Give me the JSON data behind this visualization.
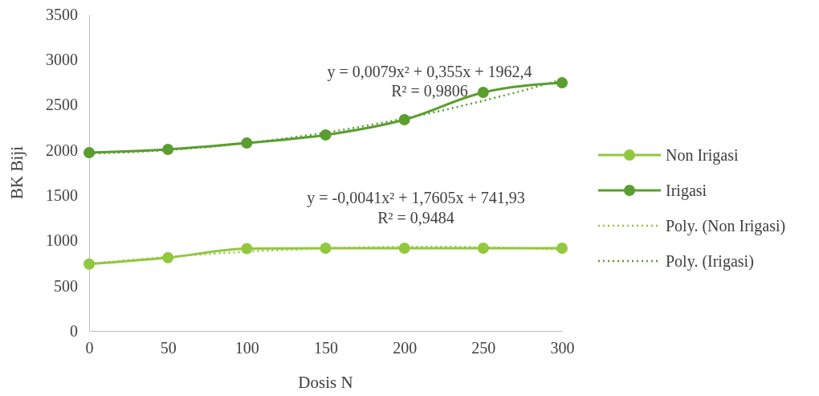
{
  "chart_data": {
    "type": "line",
    "xlabel": "Dosis N",
    "ylabel": "BK Biji",
    "xlim": [
      0,
      300
    ],
    "xticks": [
      0,
      50,
      100,
      150,
      200,
      250,
      300
    ],
    "ylim": [
      0,
      3500
    ],
    "yticks": [
      0,
      500,
      1000,
      1500,
      2000,
      2500,
      3000,
      3500
    ],
    "grid": false,
    "legend": "right",
    "marker": "circle",
    "line_style": "solid",
    "series": [
      {
        "name": "Non Irigasi",
        "color": "#92c83e",
        "x": [
          0,
          50,
          100,
          150,
          200,
          250,
          300
        ],
        "values": [
          740,
          810,
          910,
          915,
          915,
          915,
          915
        ]
      },
      {
        "name": "Irigasi",
        "color": "#5a9e2f",
        "x": [
          0,
          50,
          100,
          150,
          200,
          250,
          300
        ],
        "values": [
          1972,
          2007,
          2078,
          2167,
          2336,
          2638,
          2744
        ]
      },
      {
        "name": "Poly. (Non Irigasi)",
        "color": "#92c83e",
        "marker": "none",
        "line_style": "dotted",
        "x": [
          0,
          25,
          50,
          75,
          100,
          125,
          150,
          175,
          200,
          225,
          250,
          275,
          300
        ],
        "values": [
          742,
          783,
          820,
          851,
          877,
          898,
          914,
          925,
          930,
          931,
          926,
          916,
          901
        ]
      },
      {
        "name": "Poly. (Irigasi)",
        "color": "#5a9e2f",
        "marker": "none",
        "line_style": "dotted",
        "x": [
          0,
          25,
          50,
          75,
          100,
          125,
          150,
          175,
          200,
          225,
          250,
          275,
          300
        ],
        "values": [
          1962,
          1976,
          2000,
          2033,
          2077,
          2130,
          2193,
          2266,
          2349,
          2442,
          2545,
          2657,
          2780
        ]
      }
    ],
    "annotations": [
      "y = 0,0079x² + 0,355x + 1962,4",
      "R² = 0,9806",
      "y = -0,0041x² + 1,7605x + 741,93",
      "R² = 0,9484"
    ]
  }
}
